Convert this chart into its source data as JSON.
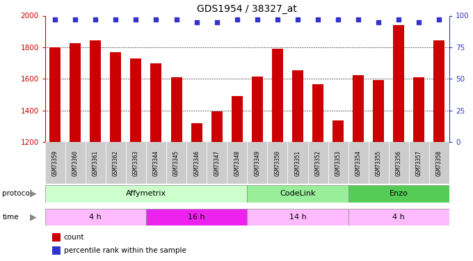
{
  "title": "GDS1954 / 38327_at",
  "samples": [
    "GSM73359",
    "GSM73360",
    "GSM73361",
    "GSM73362",
    "GSM73363",
    "GSM73344",
    "GSM73345",
    "GSM73346",
    "GSM73347",
    "GSM73348",
    "GSM73349",
    "GSM73350",
    "GSM73351",
    "GSM73352",
    "GSM73353",
    "GSM73354",
    "GSM73355",
    "GSM73356",
    "GSM73357",
    "GSM73358"
  ],
  "counts": [
    1800,
    1825,
    1845,
    1770,
    1730,
    1700,
    1610,
    1320,
    1395,
    1490,
    1615,
    1790,
    1655,
    1565,
    1340,
    1625,
    1595,
    1940,
    1610,
    1845
  ],
  "percentile_rank": [
    97,
    97,
    97,
    97,
    97,
    97,
    97,
    95,
    95,
    97,
    97,
    97,
    97,
    97,
    97,
    97,
    95,
    97,
    95,
    97
  ],
  "bar_color": "#cc0000",
  "dot_color": "#3333cc",
  "ylim_left": [
    1200,
    2000
  ],
  "ylim_right": [
    0,
    100
  ],
  "yticks_left": [
    1200,
    1400,
    1600,
    1800,
    2000
  ],
  "yticks_right": [
    0,
    25,
    50,
    75,
    100
  ],
  "protocol_groups": [
    {
      "label": "Affymetrix",
      "start": 0,
      "end": 10,
      "color": "#ccffcc"
    },
    {
      "label": "CodeLink",
      "start": 10,
      "end": 15,
      "color": "#99ee99"
    },
    {
      "label": "Enzo",
      "start": 15,
      "end": 20,
      "color": "#55cc55"
    }
  ],
  "time_groups": [
    {
      "label": "4 h",
      "start": 0,
      "end": 5,
      "color": "#ffbbff"
    },
    {
      "label": "16 h",
      "start": 5,
      "end": 10,
      "color": "#ee22ee"
    },
    {
      "label": "14 h",
      "start": 10,
      "end": 15,
      "color": "#ffbbff"
    },
    {
      "label": "4 h",
      "start": 15,
      "end": 20,
      "color": "#ffbbff"
    }
  ],
  "bg_color": "#ffffff",
  "tick_color_left": "#cc0000",
  "tick_color_right": "#3333cc",
  "xtick_bg": "#cccccc",
  "n_samples": 20
}
